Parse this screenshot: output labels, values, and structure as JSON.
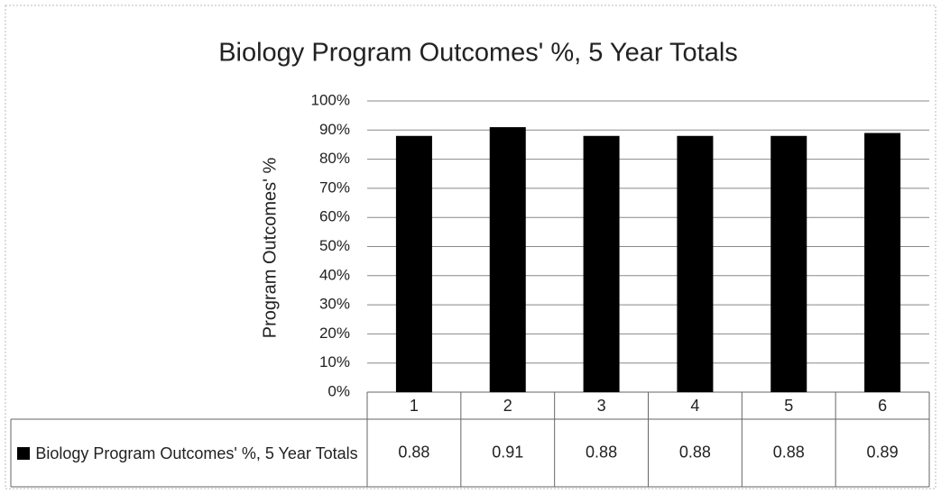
{
  "chart_data": {
    "type": "bar",
    "title": "Biology Program Outcomes' %, 5 Year Totals",
    "y_label": "Program Outcomes' %",
    "categories": [
      "1",
      "2",
      "3",
      "4",
      "5",
      "6"
    ],
    "series": [
      {
        "name": "Biology Program Outcomes' %, 5 Year Totals",
        "color": "#000000",
        "values": [
          0.88,
          0.91,
          0.88,
          0.88,
          0.88,
          0.89
        ]
      }
    ],
    "ylim": [
      0,
      1
    ],
    "yticks": [
      {
        "value": 0,
        "label": "0%"
      },
      {
        "value": 0.1,
        "label": "10%"
      },
      {
        "value": 0.2,
        "label": "20%"
      },
      {
        "value": 0.3,
        "label": "30%"
      },
      {
        "value": 0.4,
        "label": "40%"
      },
      {
        "value": 0.5,
        "label": "50%"
      },
      {
        "value": 0.6,
        "label": "60%"
      },
      {
        "value": 0.7,
        "label": "70%"
      },
      {
        "value": 0.8,
        "label": "80%"
      },
      {
        "value": 0.9,
        "label": "90%"
      },
      {
        "value": 1,
        "label": "100%"
      }
    ],
    "grid": true
  }
}
